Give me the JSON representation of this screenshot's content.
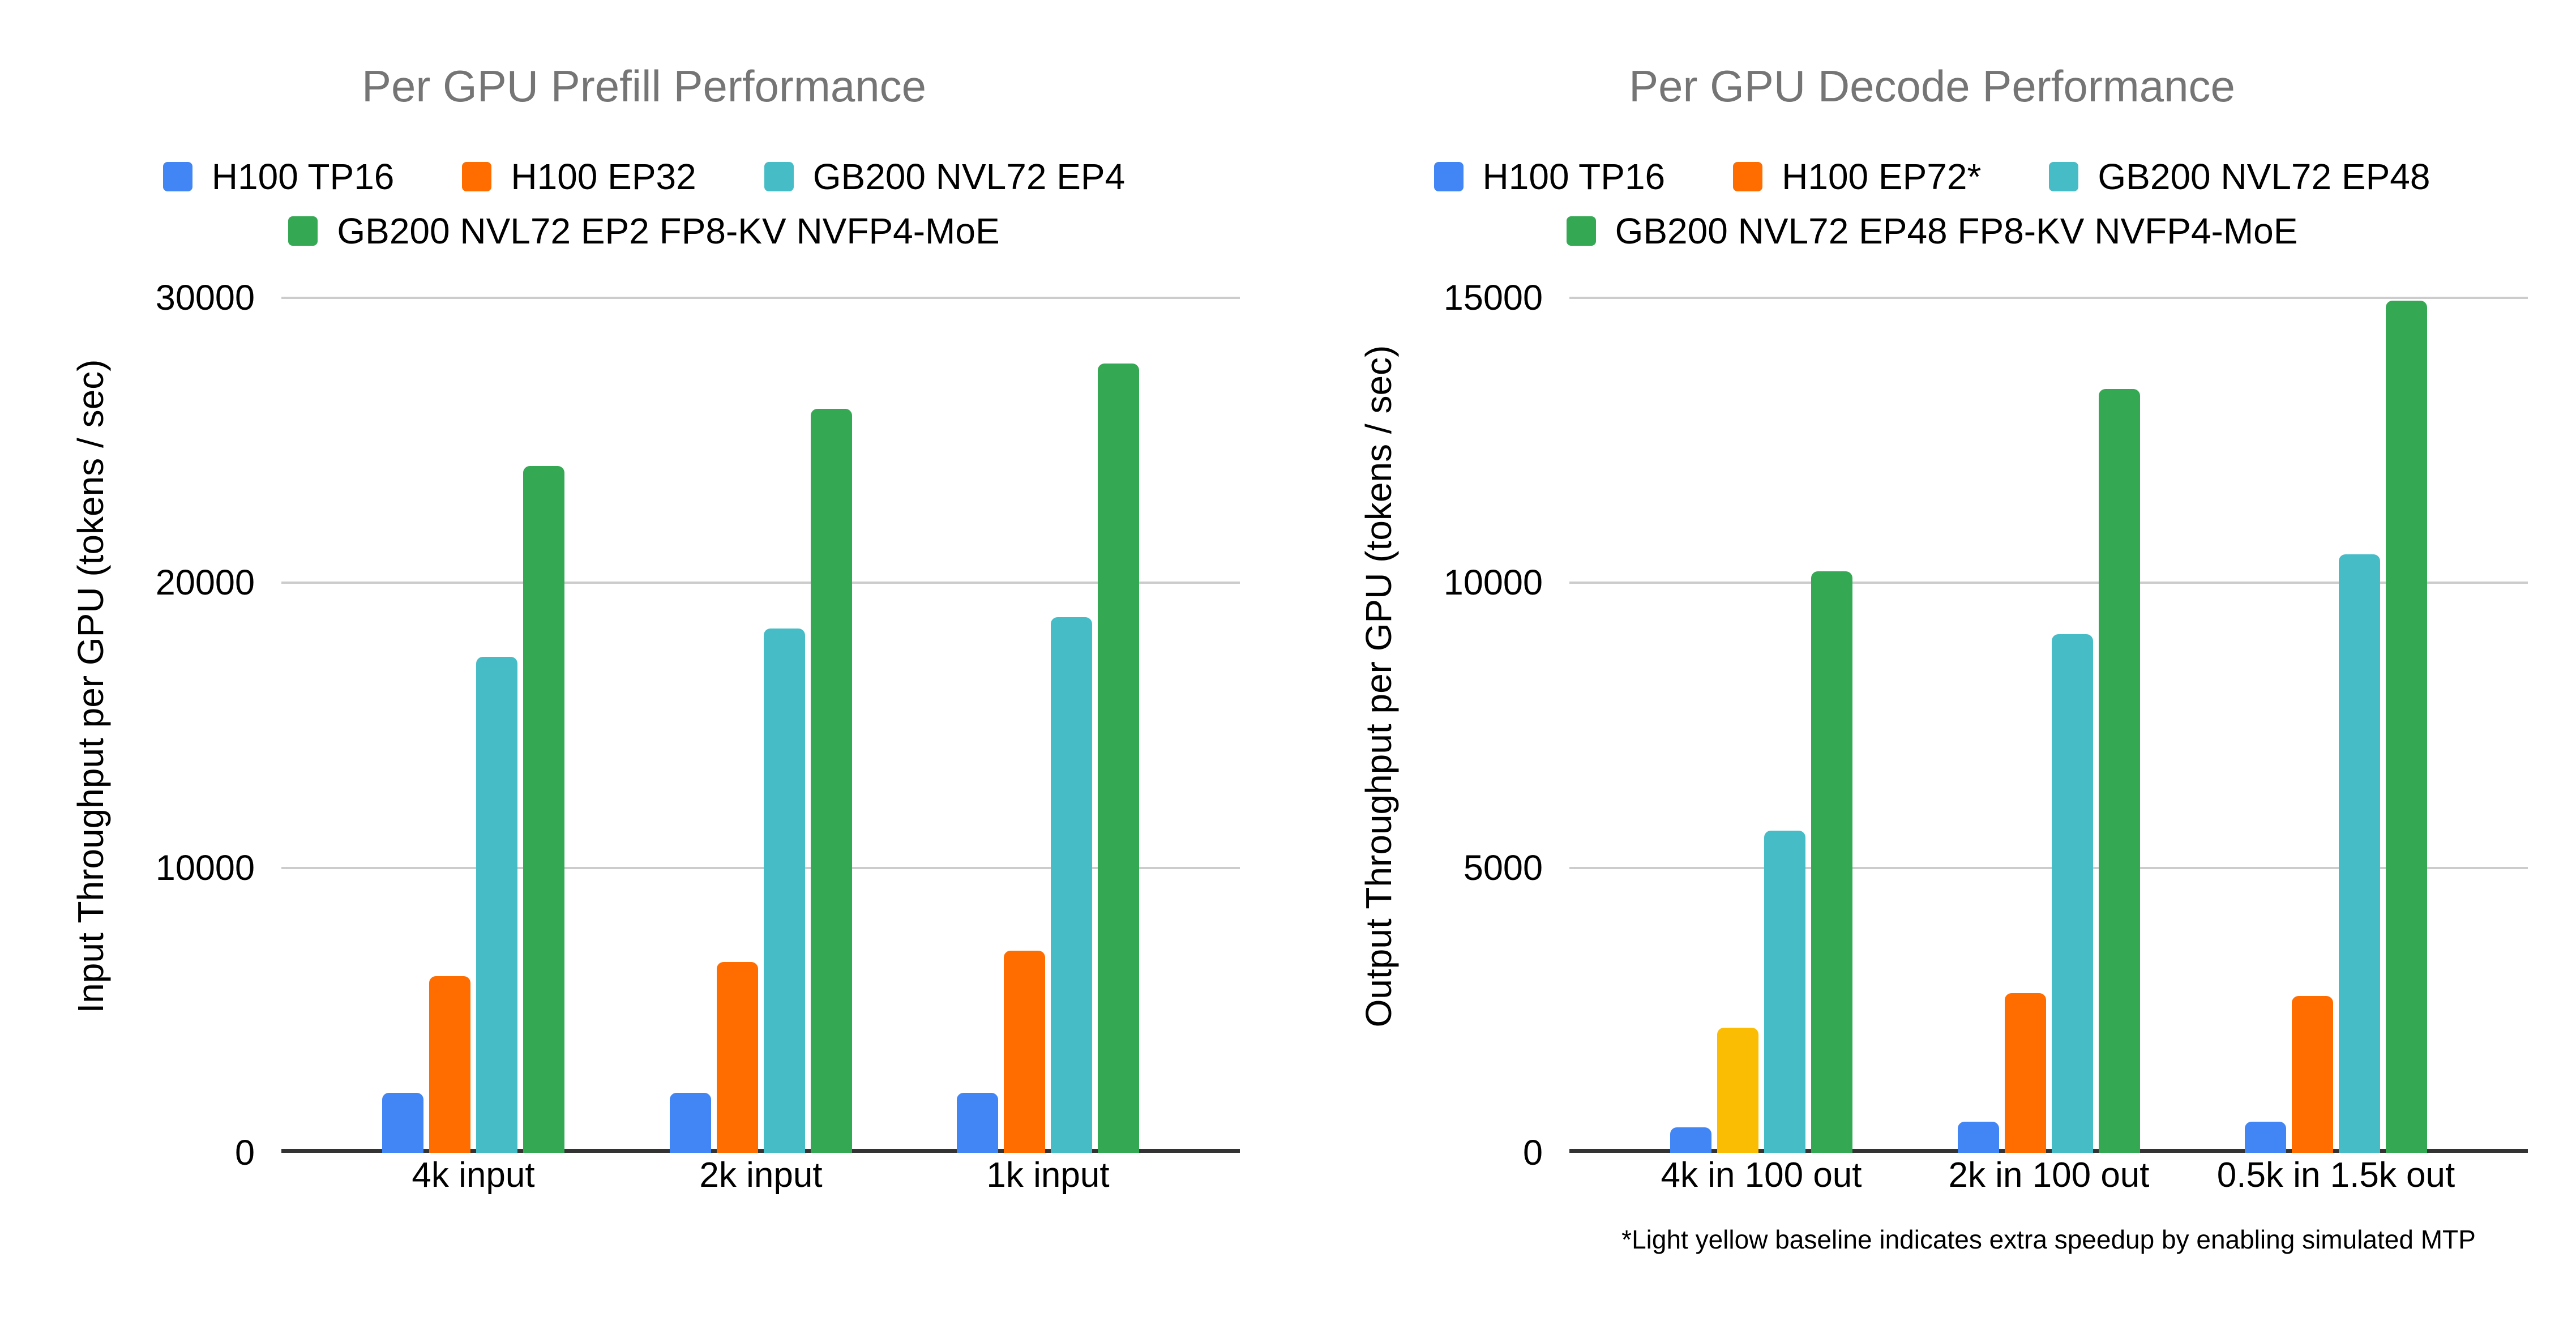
{
  "page": {
    "background": "#ffffff"
  },
  "colors": {
    "blue": "#4285F4",
    "orange": "#FF6D01",
    "teal": "#46BDC6",
    "green": "#34A853",
    "yellow": "#FBBC04",
    "title_text": "#757575",
    "axis_text": "#000000",
    "gridline": "#CCCCCC",
    "axis_line": "#333333"
  },
  "chart_data": [
    {
      "type": "bar",
      "title": "Per GPU Prefill Performance",
      "xlabel": "",
      "ylabel": "Input Throughput per GPU (tokens / sec)",
      "ylim": [
        0,
        30000
      ],
      "yticks": [
        0,
        10000,
        20000,
        30000
      ],
      "grid": true,
      "legend_position": "top",
      "categories": [
        "4k input",
        "2k input",
        "1k input"
      ],
      "series": [
        {
          "name": "H100 TP16",
          "color": "#4285F4",
          "values": [
            2100,
            2100,
            2100
          ]
        },
        {
          "name": "H100 EP32",
          "color": "#FF6D01",
          "values": [
            6200,
            6700,
            7100
          ]
        },
        {
          "name": "GB200 NVL72 EP4",
          "color": "#46BDC6",
          "values": [
            17400,
            18400,
            18800
          ]
        },
        {
          "name": "GB200 NVL72 EP2 FP8-KV NVFP4-MoE",
          "color": "#34A853",
          "values": [
            24100,
            26100,
            27700
          ]
        }
      ],
      "legend_rows": [
        [
          0,
          1,
          2
        ],
        [
          3
        ]
      ]
    },
    {
      "type": "bar",
      "title": "Per GPU Decode Performance",
      "xlabel": "",
      "ylabel": "Output Throughput per GPU (tokens / sec)",
      "ylim": [
        0,
        15000
      ],
      "yticks": [
        0,
        5000,
        10000,
        15000
      ],
      "grid": true,
      "legend_position": "top",
      "categories": [
        "4k in 100 out",
        "2k in 100 out",
        "0.5k in 1.5k out"
      ],
      "series": [
        {
          "name": "H100 TP16",
          "color": "#4285F4",
          "values": [
            450,
            550,
            550
          ]
        },
        {
          "name": "H100 EP72*",
          "color": "#FF6D01",
          "values": [
            2200,
            2800,
            2750
          ],
          "bar_color_overrides": {
            "0": "#FBBC04"
          }
        },
        {
          "name": "GB200 NVL72 EP48",
          "color": "#46BDC6",
          "values": [
            5650,
            9100,
            10500
          ]
        },
        {
          "name": "GB200 NVL72 EP48 FP8-KV NVFP4-MoE",
          "color": "#34A853",
          "values": [
            10200,
            13400,
            14950
          ]
        }
      ],
      "legend_rows": [
        [
          0,
          1,
          2
        ],
        [
          3
        ]
      ],
      "footnote": "*Light yellow baseline indicates extra speedup by enabling simulated MTP"
    }
  ]
}
